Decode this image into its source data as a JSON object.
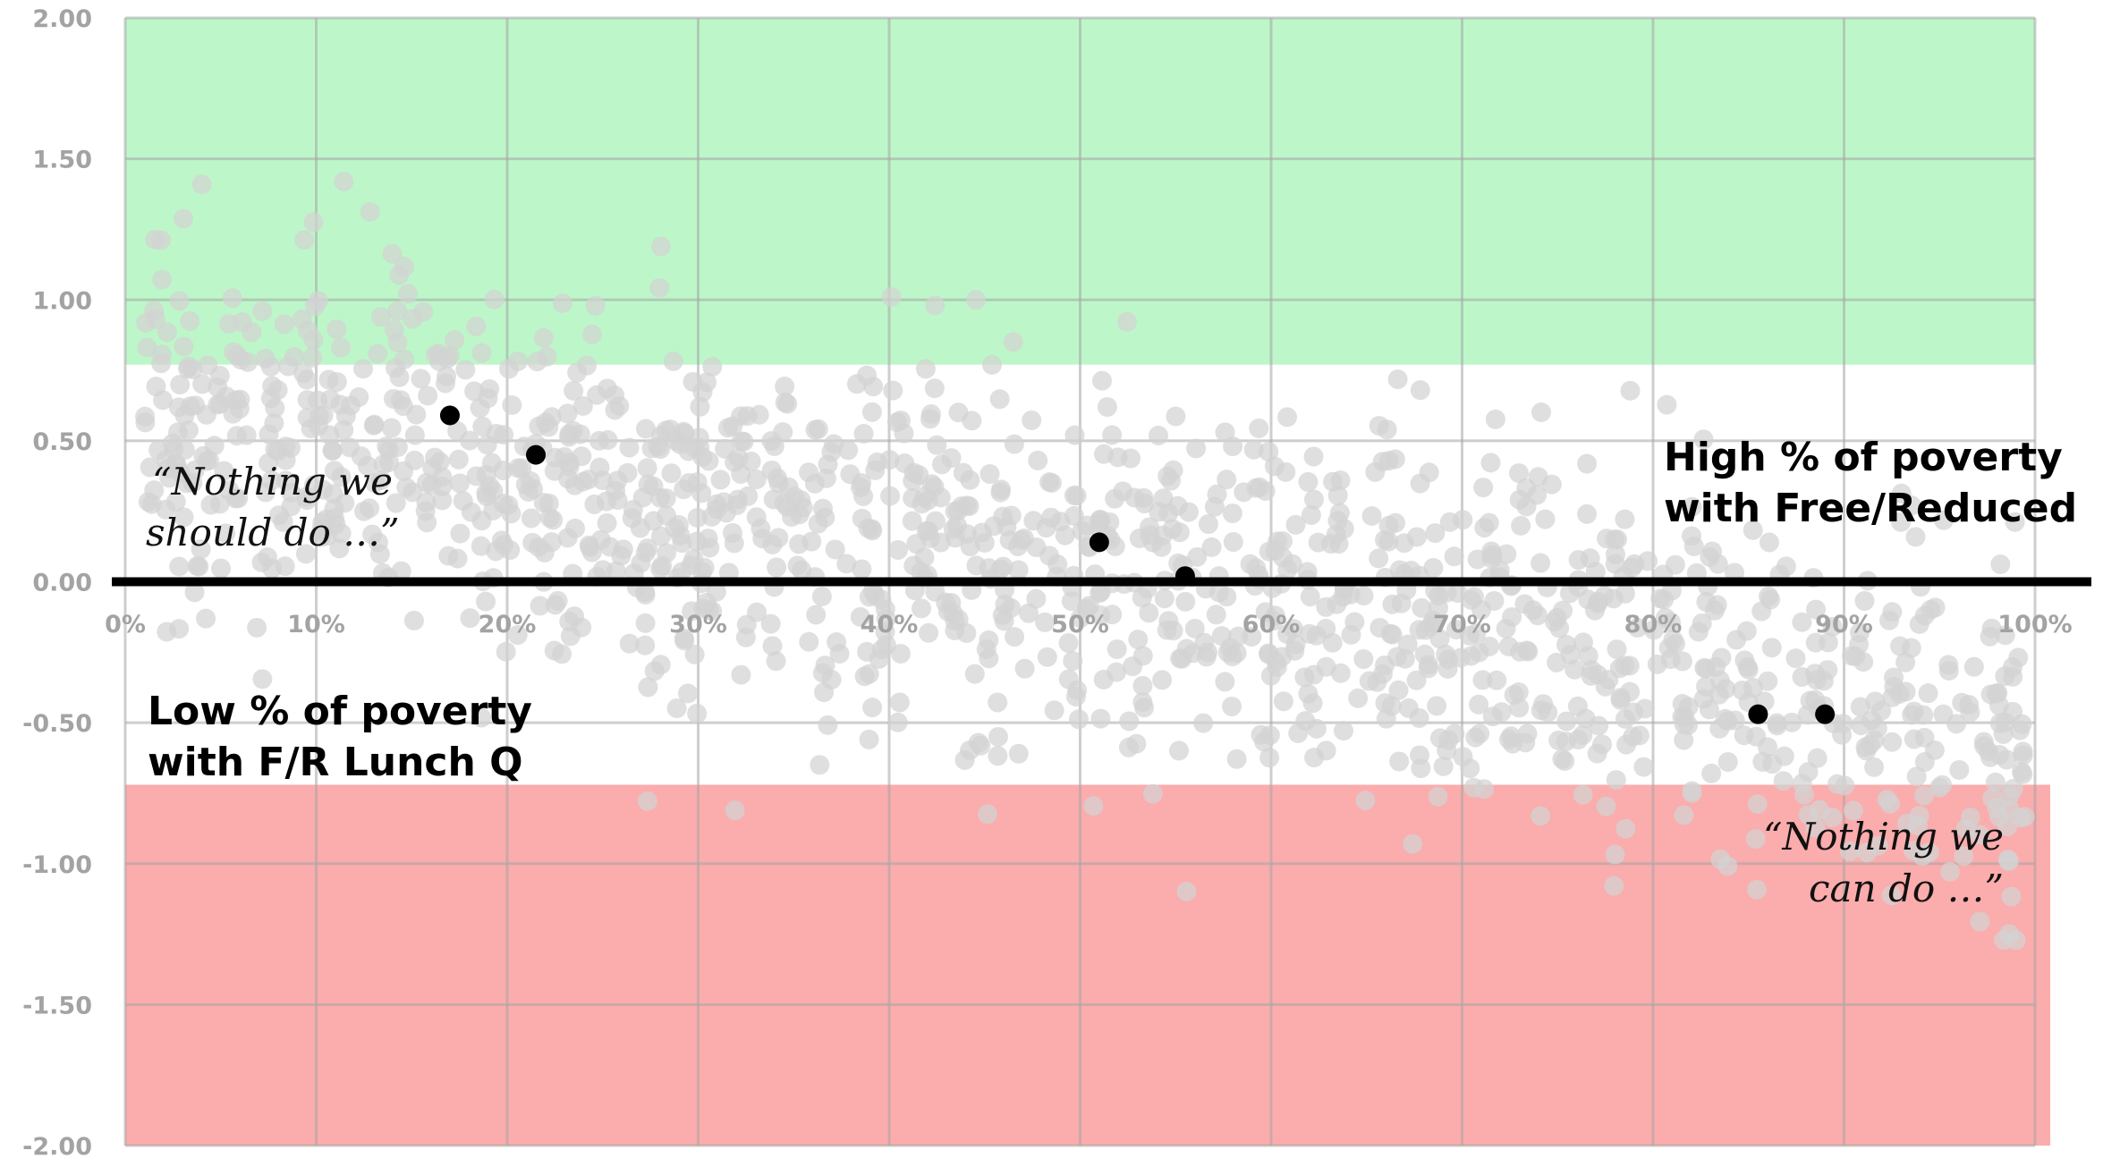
{
  "chart_data": {
    "type": "scatter",
    "title": "",
    "xlabel": "",
    "ylabel": "",
    "xlim": [
      0,
      100
    ],
    "ylim": [
      -2.0,
      2.0
    ],
    "grid": true,
    "x_ticks": [
      "0%",
      "10%",
      "20%",
      "30%",
      "40%",
      "50%",
      "60%",
      "70%",
      "80%",
      "90%",
      "100%"
    ],
    "y_ticks": [
      "2.00",
      "1.50",
      "1.00",
      "0.50",
      "0.00",
      "-0.50",
      "-1.00",
      "-1.50",
      "-2.00"
    ],
    "y_tick_values": [
      2.0,
      1.5,
      1.0,
      0.5,
      0.0,
      -0.5,
      -1.0,
      -1.5,
      -2.0
    ],
    "bands": [
      {
        "name": "high",
        "color": "#bdf7c9",
        "from": 0.77,
        "to": 2.0
      },
      {
        "name": "low",
        "color": "#fbacac",
        "from": -2.0,
        "to": -0.72
      }
    ],
    "reference_line": {
      "y": 0.0,
      "color": "#000000"
    },
    "background_points": {
      "color": "#d3d3d3",
      "count": 1400,
      "trend": {
        "intercept": 0.62,
        "slope_per_pct": -0.0115
      },
      "spread": 0.33
    },
    "highlighted_points": {
      "color": "#000000",
      "x": [
        17,
        21.5,
        51,
        55.5,
        85.5,
        89
      ],
      "y": [
        0.59,
        0.45,
        0.14,
        0.02,
        -0.47,
        -0.47
      ]
    },
    "annotations": [
      {
        "id": "high-poverty",
        "lines": [
          "High % of poverty",
          "with Free/Reduced"
        ]
      },
      {
        "id": "low-poverty",
        "lines": [
          "Low % of poverty",
          "with F/R Lunch Q"
        ]
      },
      {
        "id": "quote-should",
        "lines": [
          "“Nothing we",
          "should do …”"
        ]
      },
      {
        "id": "quote-can",
        "lines": [
          "“Nothing we",
          "can do …”"
        ]
      }
    ]
  }
}
